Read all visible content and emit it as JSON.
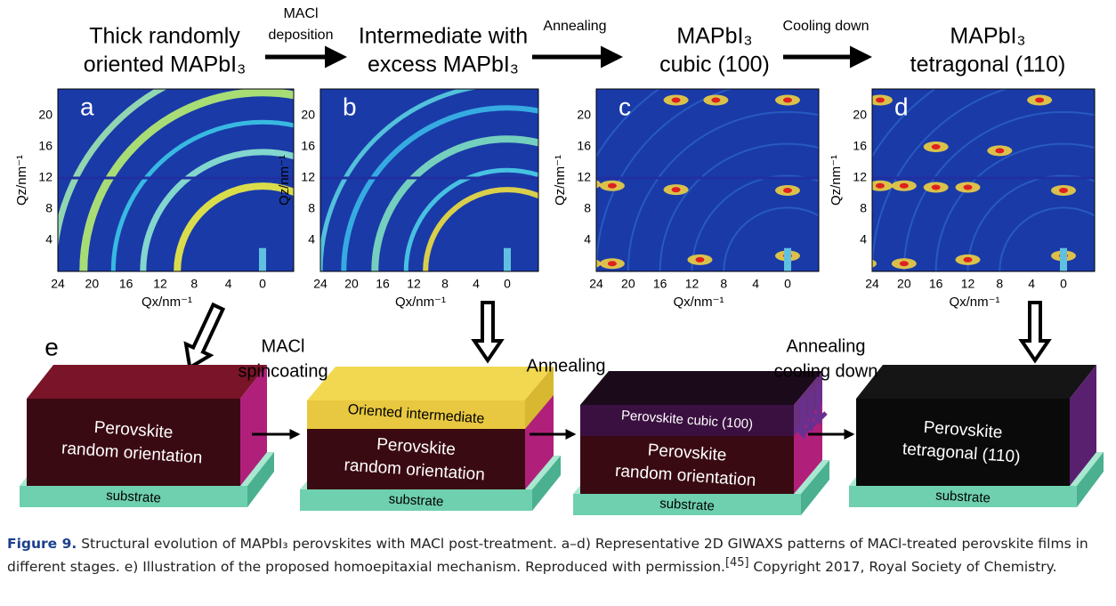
{
  "header": {
    "stages": [
      {
        "lines": [
          "Thick randomly",
          "oriented MAPbI₃"
        ]
      },
      {
        "lines": [
          "Intermediate with",
          "excess MAPbI₃"
        ]
      },
      {
        "lines": [
          "MAPbI₃",
          "cubic (100)"
        ]
      },
      {
        "lines": [
          "MAPbI₃",
          "tetragonal (110)"
        ]
      }
    ],
    "steps": [
      {
        "lines": [
          "MACl",
          "deposition"
        ]
      },
      {
        "lines": [
          "Annealing"
        ]
      },
      {
        "lines": [
          "Cooling down"
        ]
      }
    ]
  },
  "giwaxs": {
    "panels": [
      "a",
      "b",
      "c",
      "d"
    ],
    "y_label": "Qz/nm⁻¹",
    "x_label": "Qx/nm⁻¹",
    "y_ticks": [
      "4",
      "8",
      "12",
      "16",
      "20"
    ],
    "x_ticks": [
      "24",
      "20",
      "16",
      "12",
      "8",
      "4",
      "0"
    ]
  },
  "illustration": {
    "label": "e",
    "steps": [
      {
        "lines": [
          "MACl",
          "spincoating"
        ]
      },
      {
        "lines": [
          "Annealing"
        ]
      },
      {
        "lines": [
          "Annealing",
          "cooling down"
        ]
      }
    ],
    "perovskite_random": [
      "Perovskite",
      "random orientation"
    ],
    "substrate": "substrate",
    "oriented_intermediate": "Oriented intermediate",
    "perovskite_cubic": "Perovskite cubic (100)",
    "perovskite_tetragonal": [
      "Perovskite",
      "tetragonal (110)"
    ]
  },
  "caption": {
    "label": "Figure 9.",
    "text_1": " Structural evolution of MAPbI₃ perovskites with MACl post-treatment. a–d) Representative 2D GIWAXS patterns of MACl-treated perovskite films in different stages. e) Illustration of the proposed homoepitaxial mechanism. Reproduced with permission.",
    "ref": "[45]",
    "text_2": " Copyright 2017, Royal Society of Chemistry."
  }
}
